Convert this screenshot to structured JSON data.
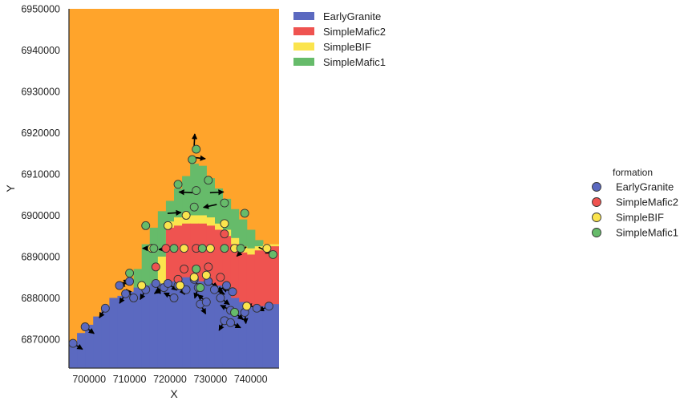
{
  "chart_data": {
    "type": "heatmap",
    "xlabel": "X",
    "ylabel": "Y",
    "xlim": [
      695000,
      747000
    ],
    "ylim": [
      6863000,
      6950000
    ],
    "xticks": [
      700000,
      710000,
      720000,
      730000,
      740000
    ],
    "yticks": [
      6870000,
      6880000,
      6890000,
      6900000,
      6910000,
      6920000,
      6930000,
      6940000,
      6950000
    ],
    "background_color": "#ffa42b",
    "formations": [
      {
        "name": "EarlyGranite",
        "color": "#5b69c0"
      },
      {
        "name": "SimpleMafic2",
        "color": "#ef5350"
      },
      {
        "name": "SimpleBIF",
        "color": "#fbe44d"
      },
      {
        "name": "SimpleMafic1",
        "color": "#66bb6a"
      }
    ],
    "legend_position": "upper-right-outside",
    "point_legend_title": "formation",
    "boundaries": {
      "x_edges": [
        695000,
        697000,
        699000,
        701000,
        703000,
        705000,
        707000,
        709000,
        711000,
        713000,
        715000,
        717000,
        719000,
        721000,
        723000,
        725000,
        727000,
        729000,
        731000,
        733000,
        735000,
        737000,
        739000,
        741000,
        743000,
        745000,
        747000
      ],
      "granite_top": [
        6868500,
        6871500,
        6873500,
        6875500,
        6877500,
        6880000,
        6880500,
        6881500,
        6882500,
        6883000,
        6883500,
        6883500,
        6884000,
        6884500,
        6885000,
        6885000,
        6884000,
        6883500,
        6883000,
        6882000,
        6880000,
        6879000,
        6878000,
        6878000,
        6878000,
        6878500
      ],
      "mafic2_top": [
        null,
        null,
        null,
        null,
        null,
        null,
        null,
        null,
        null,
        null,
        null,
        null,
        6897000,
        6897500,
        6898000,
        6898000,
        6898000,
        6897500,
        6896500,
        6895000,
        6893000,
        6891000,
        6890500,
        6891500,
        6892000,
        6892500
      ],
      "bif_top": [
        null,
        null,
        null,
        null,
        null,
        null,
        null,
        null,
        null,
        null,
        null,
        6890000,
        6898500,
        6899500,
        6900000,
        6900000,
        6900000,
        6899500,
        6898000,
        6896500,
        6894500,
        6892500,
        6892000,
        6892500,
        6893000,
        6893000
      ],
      "mafic1_top": [
        null,
        null,
        null,
        null,
        null,
        null,
        null,
        null,
        6887000,
        6893000,
        6897000,
        6901000,
        6903500,
        6906500,
        6909500,
        6912500,
        6912000,
        6909000,
        6906500,
        6904000,
        6901500,
        6899000,
        6896500,
        6894000,
        null,
        null
      ]
    },
    "points": [
      {
        "x": 696000,
        "y": 6869000,
        "formation": "EarlyGranite",
        "dx": 0.8,
        "dy": -0.5
      },
      {
        "x": 699000,
        "y": 6873000,
        "formation": "EarlyGranite",
        "dx": 0.8,
        "dy": -0.6
      },
      {
        "x": 704000,
        "y": 6877500,
        "formation": "EarlyGranite",
        "dx": -0.5,
        "dy": -0.8
      },
      {
        "x": 707500,
        "y": 6883000,
        "formation": "EarlyGranite",
        "dx": 0.8,
        "dy": 0.5
      },
      {
        "x": 709000,
        "y": 6881000,
        "formation": "EarlyGranite",
        "dx": -0.5,
        "dy": -0.8
      },
      {
        "x": 710000,
        "y": 6884000,
        "formation": "EarlyGranite",
        "dx": -0.8,
        "dy": -0.4
      },
      {
        "x": 711000,
        "y": 6880000,
        "formation": "EarlyGranite",
        "dx": -0.6,
        "dy": 0.7
      },
      {
        "x": 714000,
        "y": 6882000,
        "formation": "EarlyGranite",
        "dx": -0.5,
        "dy": -0.9
      },
      {
        "x": 716500,
        "y": 6883500,
        "formation": "EarlyGranite",
        "dx": 0.4,
        "dy": -0.9
      },
      {
        "x": 718500,
        "y": 6882500,
        "formation": "EarlyGranite",
        "dx": -0.8,
        "dy": -0.5
      },
      {
        "x": 719500,
        "y": 6883500,
        "formation": "EarlyGranite",
        "dx": 0.8,
        "dy": -0.6
      },
      {
        "x": 721000,
        "y": 6880000,
        "formation": "EarlyGranite",
        "dx": -0.8,
        "dy": 0.4
      },
      {
        "x": 722000,
        "y": 6883000,
        "formation": "EarlyGranite",
        "dx": 0.6,
        "dy": -0.8
      },
      {
        "x": 724000,
        "y": 6882000,
        "formation": "EarlyGranite",
        "dx": -0.9,
        "dy": 0.4
      },
      {
        "x": 726000,
        "y": 6884500,
        "formation": "EarlyGranite",
        "dx": 0.5,
        "dy": -0.8
      },
      {
        "x": 727000,
        "y": 6882500,
        "formation": "EarlyGranite",
        "dx": -0.3,
        "dy": -0.9
      },
      {
        "x": 727500,
        "y": 6878500,
        "formation": "EarlyGranite",
        "dx": 0.5,
        "dy": -0.9
      },
      {
        "x": 729000,
        "y": 6879000,
        "formation": "EarlyGranite",
        "dx": -0.7,
        "dy": 0.6
      },
      {
        "x": 729500,
        "y": 6884000,
        "formation": "EarlyGranite",
        "dx": 0.8,
        "dy": -0.5
      },
      {
        "x": 731000,
        "y": 6882000,
        "formation": "EarlyGranite",
        "dx": 0.9,
        "dy": -0.4
      },
      {
        "x": 732500,
        "y": 6880000,
        "formation": "EarlyGranite",
        "dx": 0.8,
        "dy": -0.6
      },
      {
        "x": 734000,
        "y": 6883000,
        "formation": "EarlyGranite",
        "dx": -0.8,
        "dy": -0.5
      },
      {
        "x": 735500,
        "y": 6881500,
        "formation": "EarlyGranite",
        "dx": -0.9,
        "dy": 0.3
      },
      {
        "x": 733500,
        "y": 6874500,
        "formation": "EarlyGranite",
        "dx": -0.5,
        "dy": -0.9
      },
      {
        "x": 735000,
        "y": 6874000,
        "formation": "EarlyGranite",
        "dx": 0.8,
        "dy": -0.4
      },
      {
        "x": 735000,
        "y": 6877000,
        "formation": "EarlyGranite",
        "dx": -0.8,
        "dy": 0.4
      },
      {
        "x": 736000,
        "y": 6876500,
        "formation": "EarlyGranite",
        "dx": 0.7,
        "dy": -0.6
      },
      {
        "x": 741500,
        "y": 6877500,
        "formation": "EarlyGranite",
        "dx": -0.8,
        "dy": 0.3
      },
      {
        "x": 744500,
        "y": 6878000,
        "formation": "EarlyGranite",
        "dx": -0.9,
        "dy": -0.4
      },
      {
        "x": 738500,
        "y": 6876500,
        "formation": "EarlyGranite",
        "dx": 0.1,
        "dy": -0.9
      },
      {
        "x": 716500,
        "y": 6887500,
        "formation": "SimpleMafic2"
      },
      {
        "x": 719000,
        "y": 6892000,
        "formation": "SimpleMafic2"
      },
      {
        "x": 722000,
        "y": 6884500,
        "formation": "SimpleMafic2"
      },
      {
        "x": 723500,
        "y": 6887000,
        "formation": "SimpleMafic2"
      },
      {
        "x": 726500,
        "y": 6892000,
        "formation": "SimpleMafic2"
      },
      {
        "x": 729500,
        "y": 6887500,
        "formation": "SimpleMafic2"
      },
      {
        "x": 732500,
        "y": 6885000,
        "formation": "SimpleMafic2"
      },
      {
        "x": 733500,
        "y": 6895500,
        "formation": "SimpleMafic2"
      },
      {
        "x": 713000,
        "y": 6883000,
        "formation": "SimpleBIF"
      },
      {
        "x": 715500,
        "y": 6892000,
        "formation": "SimpleBIF"
      },
      {
        "x": 719500,
        "y": 6897500,
        "formation": "SimpleBIF"
      },
      {
        "x": 722500,
        "y": 6883000,
        "formation": "SimpleBIF"
      },
      {
        "x": 723500,
        "y": 6892000,
        "formation": "SimpleBIF"
      },
      {
        "x": 724000,
        "y": 6900000,
        "formation": "SimpleBIF"
      },
      {
        "x": 726000,
        "y": 6885000,
        "formation": "SimpleBIF"
      },
      {
        "x": 729000,
        "y": 6885500,
        "formation": "SimpleBIF"
      },
      {
        "x": 730000,
        "y": 6892000,
        "formation": "SimpleBIF"
      },
      {
        "x": 733500,
        "y": 6898000,
        "formation": "SimpleBIF"
      },
      {
        "x": 736000,
        "y": 6892000,
        "formation": "SimpleBIF"
      },
      {
        "x": 739000,
        "y": 6878000,
        "formation": "SimpleBIF"
      },
      {
        "x": 744000,
        "y": 6892000,
        "formation": "SimpleBIF"
      },
      {
        "x": 710000,
        "y": 6886000,
        "formation": "SimpleMafic1"
      },
      {
        "x": 714000,
        "y": 6897500,
        "formation": "SimpleMafic1"
      },
      {
        "x": 716000,
        "y": 6892000,
        "formation": "SimpleMafic1"
      },
      {
        "x": 721000,
        "y": 6892000,
        "formation": "SimpleMafic1"
      },
      {
        "x": 722000,
        "y": 6907500,
        "formation": "SimpleMafic1"
      },
      {
        "x": 725500,
        "y": 6913500,
        "formation": "SimpleMafic1"
      },
      {
        "x": 726000,
        "y": 6902000,
        "formation": "SimpleMafic1"
      },
      {
        "x": 726500,
        "y": 6906000,
        "formation": "SimpleMafic1"
      },
      {
        "x": 726500,
        "y": 6916000,
        "formation": "SimpleMafic1"
      },
      {
        "x": 726500,
        "y": 6887000,
        "formation": "SimpleMafic1"
      },
      {
        "x": 727500,
        "y": 6882500,
        "formation": "SimpleMafic1"
      },
      {
        "x": 728000,
        "y": 6892000,
        "formation": "SimpleMafic1"
      },
      {
        "x": 729500,
        "y": 6908500,
        "formation": "SimpleMafic1"
      },
      {
        "x": 733500,
        "y": 6903000,
        "formation": "SimpleMafic1"
      },
      {
        "x": 733500,
        "y": 6892000,
        "formation": "SimpleMafic1"
      },
      {
        "x": 737500,
        "y": 6892000,
        "formation": "SimpleMafic1"
      },
      {
        "x": 738500,
        "y": 6900500,
        "formation": "SimpleMafic1"
      },
      {
        "x": 745500,
        "y": 6890500,
        "formation": "SimpleMafic1"
      },
      {
        "x": 736000,
        "y": 6876500,
        "formation": "SimpleMafic1"
      }
    ],
    "orientations": [
      {
        "x": 726000,
        "y": 6917000,
        "dx": 0.05,
        "dy": 0.95
      },
      {
        "x": 726000,
        "y": 6914000,
        "dx": 0.9,
        "dy": -0.1
      },
      {
        "x": 725000,
        "y": 6905500,
        "dx": -0.9,
        "dy": 0.05
      },
      {
        "x": 730500,
        "y": 6905500,
        "dx": 0.9,
        "dy": 0.05
      },
      {
        "x": 731000,
        "y": 6902500,
        "dx": -0.9,
        "dy": -0.2
      },
      {
        "x": 720000,
        "y": 6900500,
        "dx": 0.7,
        "dy": 0.05
      },
      {
        "x": 716000,
        "y": 6892000,
        "dx": -0.9,
        "dy": 0.0
      },
      {
        "x": 720000,
        "y": 6892000,
        "dx": -0.9,
        "dy": -0.1
      },
      {
        "x": 738500,
        "y": 6892000,
        "dx": -0.6,
        "dy": -0.6
      },
      {
        "x": 742500,
        "y": 6892000,
        "dx": 0.6,
        "dy": -0.3
      }
    ]
  }
}
